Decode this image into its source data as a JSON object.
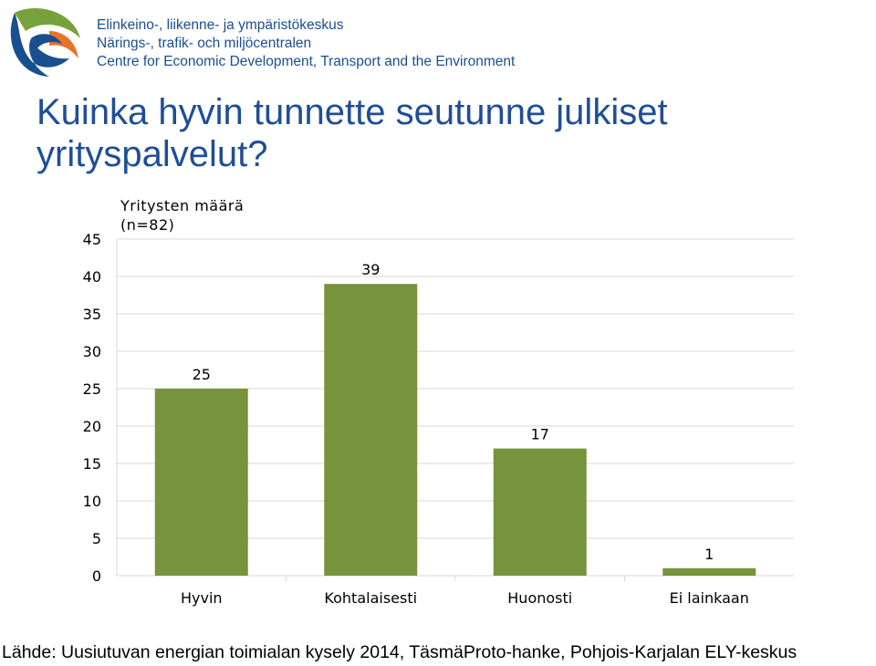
{
  "header": {
    "org_lines": [
      "Elinkeino-, liikenne- ja ympäristökeskus",
      "Närings-, trafik- och miljöcentralen",
      "Centre for Economic Development, Transport and the Environment"
    ]
  },
  "title_lines": [
    "Kuinka hyvin tunnette seutunne julkiset",
    "yrityspalvelut?"
  ],
  "source": "Lähde: Uusiutuvan energian toimialan kysely 2014, TäsmäProto-hanke, Pohjois-Karjalan ELY-keskus",
  "colors": {
    "bar": "#77933c",
    "title": "#1f4e96",
    "grid": "#d9d9d9",
    "logo_blue": "#1a4f8f",
    "logo_orange": "#e8732a",
    "logo_green": "#77a23b"
  },
  "chart_data": {
    "type": "bar",
    "ylabel": [
      "Yritysten määrä",
      "(n=82)"
    ],
    "categories": [
      "Hyvin",
      "Kohtalaisesti",
      "Huonosti",
      "Ei lainkaan"
    ],
    "values": [
      25,
      39,
      17,
      1
    ],
    "data_labels": [
      "25",
      "39",
      "17",
      "1"
    ],
    "ylim": [
      0,
      45
    ],
    "yticks": [
      0,
      5,
      10,
      15,
      20,
      25,
      30,
      35,
      40,
      45
    ],
    "grid": true,
    "legend": "none"
  }
}
